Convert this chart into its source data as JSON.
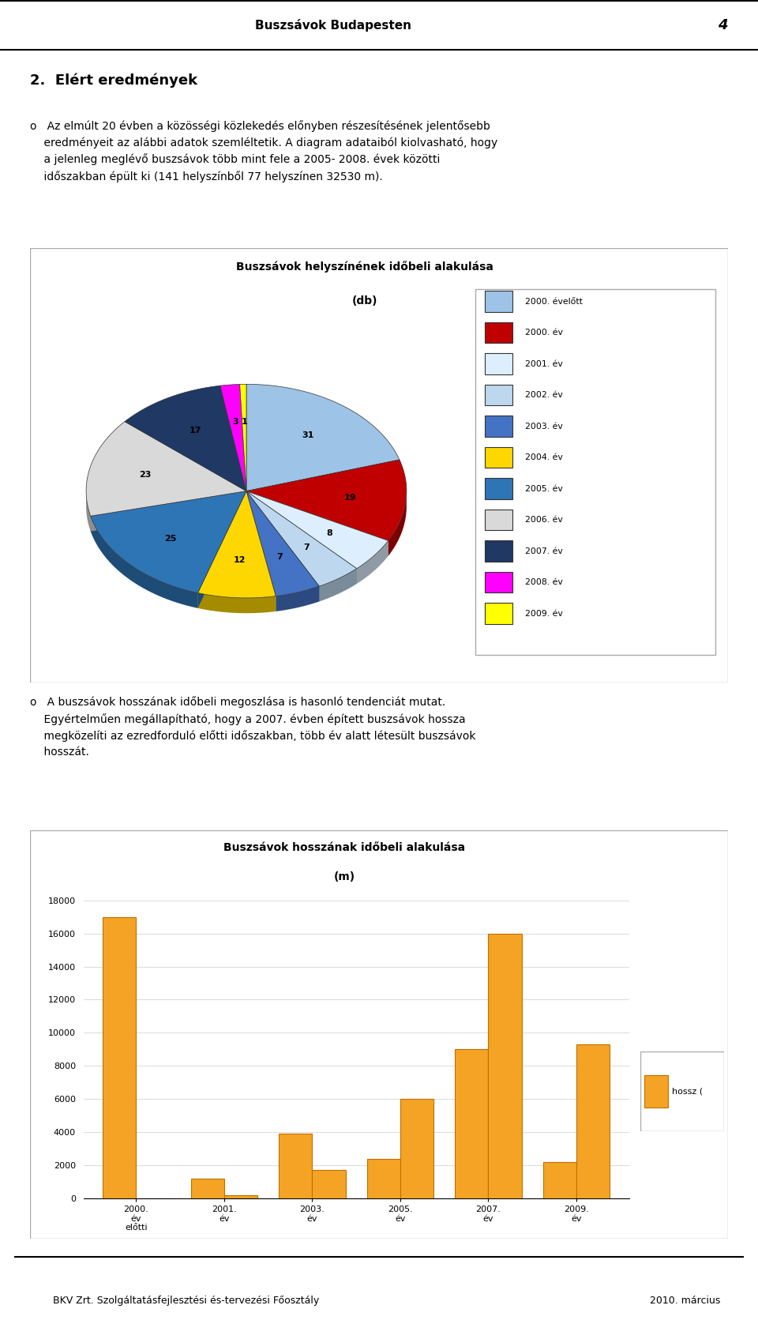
{
  "page_title": "Buszsávok Budapesten",
  "page_number": "4",
  "pie_title_line1": "Buszsávok helyszínének időbeli alakulása",
  "pie_title_line2": "(db)",
  "pie_labels": [
    "2000. évelőtt",
    "2000. év",
    "2001. év",
    "2002. év",
    "2003. év",
    "2004. év",
    "2005. év",
    "2006. év",
    "2007. év",
    "2008. év",
    "2009. év"
  ],
  "pie_values": [
    31,
    19,
    8,
    7,
    7,
    12,
    25,
    23,
    17,
    3,
    1
  ],
  "pie_colors": [
    "#9DC3E6",
    "#C00000",
    "#DDEEFF",
    "#BDD7EE",
    "#4472C4",
    "#FFD700",
    "#2E75B6",
    "#D9D9D9",
    "#1F3864",
    "#FF00FF",
    "#FFFF00"
  ],
  "bar_title_line1": "Buszsávok hosszának időbeli alakulása",
  "bar_title_line2": "(m)",
  "bar_x_ticks": [
    "2000.\név\nelőtti",
    "2001.\név",
    "2003.\név",
    "2005.\név",
    "2007.\név",
    "2009.\név"
  ],
  "bar_vals_left": [
    17000,
    1200,
    3900,
    2400,
    9000,
    2200
  ],
  "bar_vals_right": [
    0,
    200,
    1700,
    6000,
    16000,
    9300
  ],
  "bar_color": "#F4A325",
  "bar_edge_color": "#C07000",
  "bar_legend": "hossz (",
  "bar_yticks": [
    0,
    2000,
    4000,
    6000,
    8000,
    10000,
    12000,
    14000,
    16000,
    18000
  ],
  "footer_text": "BKV Zrt. Szolgáltatásfejlesztési és-tervezési Főosztály",
  "footer_year": "2010. március"
}
